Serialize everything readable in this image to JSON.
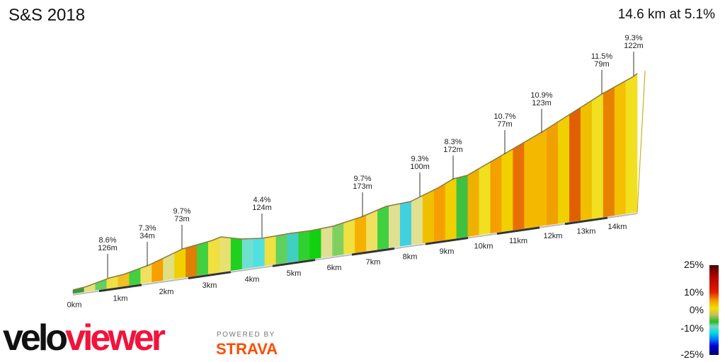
{
  "title": "S&S 2018",
  "summary": "14.6 km at 5.1%",
  "km_labels": [
    "0km",
    "1km",
    "2km",
    "3km",
    "4km",
    "5km",
    "6km",
    "7km",
    "8km",
    "9km",
    "10km",
    "11km",
    "12km",
    "13km",
    "14km"
  ],
  "climbs": [
    {
      "grade": "8.6%",
      "length": "126m"
    },
    {
      "grade": "7.3%",
      "length": "34m"
    },
    {
      "grade": "9.7%",
      "length": "73m"
    },
    {
      "grade": "4.4%",
      "length": "124m"
    },
    {
      "grade": "9.7%",
      "length": "173m"
    },
    {
      "grade": "9.3%",
      "length": "100m"
    },
    {
      "grade": "8.3%",
      "length": "172m"
    },
    {
      "grade": "10.7%",
      "length": "77m"
    },
    {
      "grade": "10.9%",
      "length": "123m"
    },
    {
      "grade": "11.5%",
      "length": "79m"
    },
    {
      "grade": "9.3%",
      "length": "122m"
    }
  ],
  "legend": {
    "labels": [
      "25%",
      "10%",
      "0%",
      "-10%",
      "-25%"
    ]
  },
  "segment_colors": [
    "#3a9a3a",
    "#e8e070",
    "#60d060",
    "#f0e040",
    "#f0c020",
    "#40d040",
    "#f0e060",
    "#f5a000",
    "#e0e080",
    "#f0d000",
    "#e08000",
    "#40d040",
    "#f0e040",
    "#e8e070",
    "#20d020",
    "#70e0d0",
    "#50e0e0",
    "#f0e040",
    "#60d060",
    "#40d0c0",
    "#30d030",
    "#10d010",
    "#e0e090",
    "#80d060",
    "#f0e040",
    "#f5b000",
    "#f0e060",
    "#40d040",
    "#e0e090",
    "#40d0e0",
    "#e0e090",
    "#f0c000",
    "#f5a000",
    "#f0d000",
    "#40c040",
    "#f0b000",
    "#f0e020",
    "#f5a000",
    "#f0d000",
    "#e87000",
    "#f5b800",
    "#f5b800",
    "#f0a000",
    "#f0d000",
    "#e06000",
    "#f0c000",
    "#f0e020",
    "#e88000",
    "#f5c000",
    "#f0e020"
  ],
  "branding": {
    "logo_velo": "velo",
    "logo_viewer": "viewer",
    "powered_by": "POWERED BY",
    "strava": "STRAVA"
  }
}
